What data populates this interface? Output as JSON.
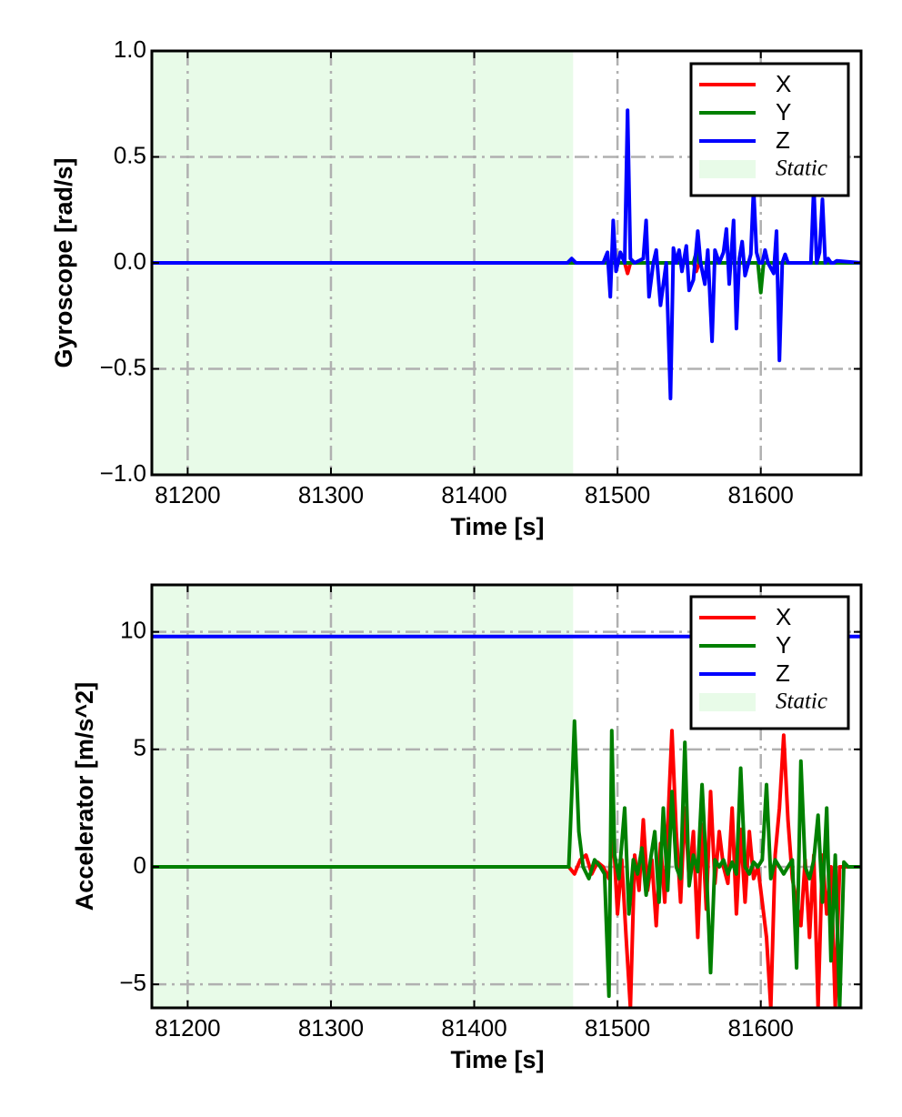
{
  "chart_data": [
    {
      "type": "line",
      "title": "",
      "xlabel": "Time [s]",
      "ylabel": "Gyroscope [rad/s]",
      "xlim": [
        81175,
        81670
      ],
      "ylim": [
        -1.0,
        1.0
      ],
      "xticks": [
        81200,
        81300,
        81400,
        81500,
        81600
      ],
      "xtick_labels": [
        "81200",
        "81300",
        "81400",
        "81500",
        "81600"
      ],
      "yticks": [
        1.0,
        0.5,
        0.0,
        -0.5,
        -1.0
      ],
      "ytick_labels": [
        "1.0",
        "0.5",
        "0.0",
        "−0.5",
        "−1.0"
      ],
      "grid": true,
      "legend_position": "top-right",
      "shaded_regions": [
        {
          "label": "Static",
          "x_start": 81175,
          "x_end": 81469,
          "color": "#e8fbe8"
        }
      ],
      "legend": [
        {
          "label": "X",
          "color": "#ff0000",
          "kind": "line"
        },
        {
          "label": "Y",
          "color": "#008000",
          "kind": "line"
        },
        {
          "label": "Z",
          "color": "#0000ff",
          "kind": "line"
        },
        {
          "label": "Static",
          "color": "#e8fbe8",
          "kind": "patch"
        }
      ],
      "series": [
        {
          "name": "X",
          "color": "#ff0000",
          "x": [
            81175,
            81469,
            81505,
            81507,
            81509,
            81553,
            81555,
            81557,
            81670
          ],
          "y": [
            0.0,
            0.0,
            0.0,
            -0.05,
            0.0,
            0.0,
            -0.04,
            0.0,
            0.0
          ]
        },
        {
          "name": "Y",
          "color": "#008000",
          "x": [
            81175,
            81469,
            81553,
            81555,
            81557,
            81598,
            81600,
            81602,
            81670
          ],
          "y": [
            0.0,
            0.0,
            0.0,
            0.05,
            0.0,
            0.0,
            -0.14,
            0.0,
            0.0
          ]
        },
        {
          "name": "Z",
          "color": "#0000ff",
          "x": [
            81175,
            81465,
            81468,
            81471,
            81490,
            81493,
            81495,
            81497,
            81499,
            81502,
            81505,
            81507,
            81509,
            81512,
            81518,
            81520,
            81522,
            81525,
            81527,
            81530,
            81534,
            81537,
            81539,
            81541,
            81543,
            81545,
            81548,
            81550,
            81553,
            81556,
            81558,
            81561,
            81563,
            81566,
            81568,
            81571,
            81574,
            81576,
            81578,
            81581,
            81583,
            81585,
            81587,
            81589,
            81593,
            81595,
            81597,
            81599,
            81601,
            81603,
            81605,
            81609,
            81611,
            81613,
            81615,
            81617,
            81619,
            81625,
            81635,
            81637,
            81639,
            81641,
            81643,
            81645,
            81647,
            81649,
            81651,
            81653,
            81670
          ],
          "y": [
            0.0,
            0.0,
            0.02,
            0.0,
            0.0,
            0.05,
            -0.16,
            0.2,
            -0.04,
            0.05,
            0.0,
            0.72,
            0.02,
            0.0,
            0.02,
            0.2,
            -0.16,
            0.0,
            0.06,
            -0.2,
            0.0,
            -0.64,
            0.07,
            0.0,
            0.06,
            -0.04,
            0.08,
            -0.13,
            -0.08,
            0.15,
            0.0,
            -0.1,
            0.06,
            -0.37,
            0.06,
            0.0,
            0.05,
            0.16,
            -0.1,
            0.2,
            -0.31,
            0.02,
            0.1,
            -0.06,
            0.04,
            0.35,
            0.05,
            0.0,
            0.0,
            0.06,
            0.0,
            -0.05,
            0.15,
            -0.46,
            0.0,
            0.04,
            0.0,
            0.0,
            0.0,
            0.36,
            0.0,
            0.05,
            0.3,
            0.0,
            0.02,
            0.0,
            0.0,
            0.01,
            0.0
          ]
        }
      ]
    },
    {
      "type": "line",
      "title": "",
      "xlabel": "Time [s]",
      "ylabel": "Accelerator [m/s^2]",
      "xlim": [
        81175,
        81670
      ],
      "ylim": [
        -6,
        12
      ],
      "xticks": [
        81200,
        81300,
        81400,
        81500,
        81600
      ],
      "xtick_labels": [
        "81200",
        "81300",
        "81400",
        "81500",
        "81600"
      ],
      "yticks": [
        10,
        5,
        0,
        -5
      ],
      "ytick_labels": [
        "10",
        "5",
        "0",
        "−5"
      ],
      "grid": true,
      "legend_position": "top-right",
      "shaded_regions": [
        {
          "label": "Static",
          "x_start": 81175,
          "x_end": 81469,
          "color": "#e8fbe8"
        }
      ],
      "legend": [
        {
          "label": "X",
          "color": "#ff0000",
          "kind": "line"
        },
        {
          "label": "Y",
          "color": "#008000",
          "kind": "line"
        },
        {
          "label": "Z",
          "color": "#0000ff",
          "kind": "line"
        },
        {
          "label": "Static",
          "color": "#e8fbe8",
          "kind": "patch"
        }
      ],
      "series": [
        {
          "name": "Z",
          "color": "#0000ff",
          "x": [
            81175,
            81250,
            81350,
            81450,
            81550,
            81670
          ],
          "y": [
            9.8,
            9.8,
            9.8,
            9.8,
            9.8,
            9.8
          ]
        },
        {
          "name": "X",
          "color": "#ff0000",
          "x": [
            81175,
            81466,
            81470,
            81474,
            81478,
            81482,
            81486,
            81490,
            81494,
            81497,
            81500,
            81503,
            81506,
            81509,
            81512,
            81515,
            81518,
            81521,
            81524,
            81527,
            81530,
            81533,
            81536,
            81538,
            81541,
            81544,
            81547,
            81550,
            81553,
            81556,
            81559,
            81562,
            81565,
            81568,
            81571,
            81574,
            81577,
            81580,
            81583,
            81586,
            81589,
            81592,
            81595,
            81598,
            81601,
            81604,
            81607,
            81610,
            81613,
            81616,
            81619,
            81622,
            81625,
            81628,
            81631,
            81634,
            81637,
            81640,
            81643,
            81646,
            81649,
            81652,
            81655,
            81658,
            81661,
            81664,
            81670
          ],
          "y": [
            0.0,
            0.0,
            -0.3,
            0.3,
            0.5,
            -0.3,
            0.2,
            0.0,
            -0.5,
            1.5,
            -2.0,
            0.3,
            -3.0,
            -6.0,
            0.5,
            -1.0,
            2.0,
            -1.0,
            0.3,
            -2.5,
            1.0,
            -1.5,
            3.0,
            5.8,
            1.5,
            -1.5,
            2.5,
            -0.5,
            1.5,
            -3.0,
            1.8,
            -1.8,
            3.2,
            -0.7,
            1.5,
            0.0,
            -0.7,
            2.5,
            -2.0,
            1.6,
            -1.5,
            1.5,
            -0.5,
            0.0,
            -1.5,
            -3.0,
            -6.0,
            0.5,
            2.5,
            5.6,
            2.0,
            -0.5,
            -1.5,
            -2.5,
            0.3,
            -3.0,
            0.5,
            -6.0,
            0.5,
            -2.0,
            0.0,
            -6.0,
            0.0,
            0.0,
            0.0,
            0.0,
            0.0
          ]
        },
        {
          "name": "Y",
          "color": "#008000",
          "x": [
            81175,
            81466,
            81468,
            81470,
            81473,
            81476,
            81480,
            81484,
            81488,
            81491,
            81494,
            81496,
            81498,
            81501,
            81505,
            81508,
            81511,
            81514,
            81517,
            81520,
            81523,
            81526,
            81529,
            81532,
            81535,
            81538,
            81541,
            81544,
            81547,
            81550,
            81553,
            81556,
            81559,
            81562,
            81565,
            81568,
            81571,
            81574,
            81577,
            81580,
            81583,
            81586,
            81589,
            81592,
            81595,
            81598,
            81601,
            81604,
            81607,
            81610,
            81613,
            81616,
            81619,
            81622,
            81625,
            81628,
            81631,
            81634,
            81637,
            81640,
            81643,
            81646,
            81649,
            81652,
            81655,
            81658,
            81661,
            81664,
            81670
          ],
          "y": [
            0.0,
            0.0,
            3.0,
            6.2,
            1.5,
            0.0,
            -0.5,
            0.3,
            0.0,
            -0.3,
            -5.5,
            5.8,
            0.5,
            -0.5,
            2.5,
            -2.0,
            0.3,
            -0.3,
            0.8,
            -1.2,
            0.3,
            1.5,
            -1.5,
            2.5,
            -1.0,
            3.2,
            0.0,
            -0.5,
            5.3,
            -0.8,
            0.5,
            -0.2,
            3.5,
            0.0,
            -4.5,
            0.3,
            0.0,
            0.3,
            -0.3,
            0.2,
            -0.3,
            4.2,
            0.0,
            -0.3,
            0.2,
            0.0,
            0.3,
            3.5,
            -0.5,
            0.3,
            0.0,
            -0.3,
            0.0,
            0.3,
            -4.3,
            4.5,
            0.0,
            -0.5,
            0.3,
            2.2,
            -1.5,
            2.5,
            -4.0,
            0.5,
            -6.0,
            0.2,
            0.0,
            0.0,
            0.0
          ]
        }
      ]
    }
  ]
}
